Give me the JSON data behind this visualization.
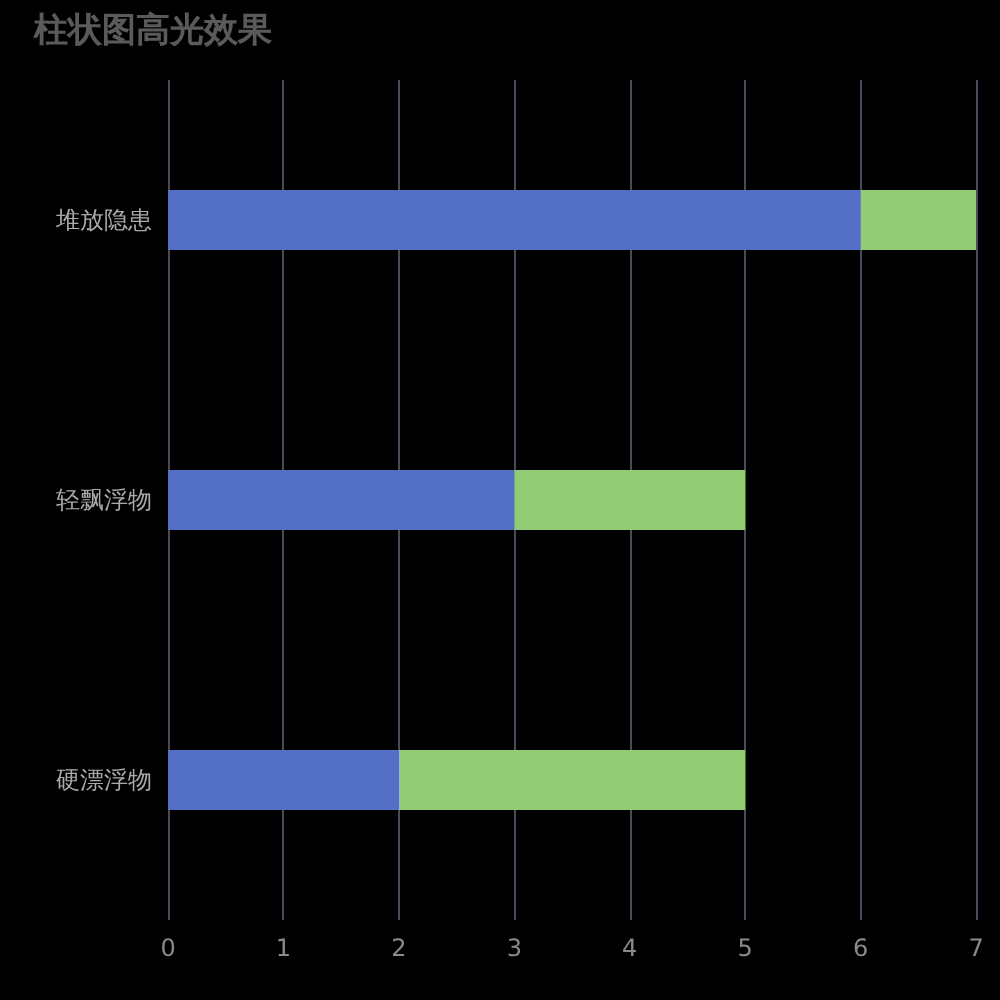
{
  "chart_data": {
    "type": "bar",
    "title": "柱状图高光效果",
    "orientation": "horizontal",
    "stacked": true,
    "categories": [
      "堆放隐患",
      "轻飘浮物",
      "硬漂浮物"
    ],
    "series": [
      {
        "color": "#5470c6",
        "values": [
          6,
          3,
          2
        ]
      },
      {
        "color": "#91cc75",
        "values": [
          1,
          2,
          3
        ]
      }
    ],
    "xlim": [
      0,
      7
    ],
    "xticks": [
      0,
      1,
      2,
      3,
      4,
      5,
      6,
      7
    ],
    "grid": "x"
  }
}
